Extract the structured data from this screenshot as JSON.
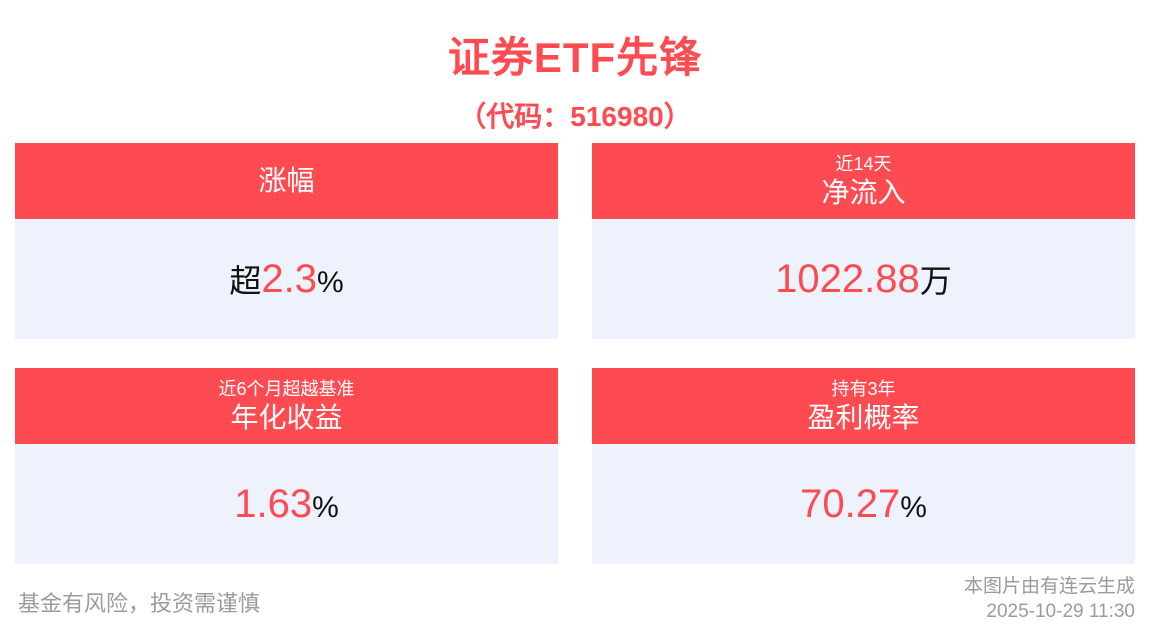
{
  "page": {
    "title": "证券ETF先锋",
    "subtitle": "（代码：516980）"
  },
  "cards": [
    {
      "name": "change-percent",
      "header_large": "涨幅",
      "value_prefix": "超",
      "value": "2.3",
      "value_suffix": "%"
    },
    {
      "name": "net-inflow",
      "header_small": "近14天",
      "header_large": "净流入",
      "value": "1022.88",
      "value_suffix": "万"
    },
    {
      "name": "annualized-return",
      "header_small": "近6个月超越基准",
      "header_large": "年化收益",
      "value": "1.63",
      "value_suffix": "%"
    },
    {
      "name": "profit-probability",
      "header_small": "持有3年",
      "header_large": "盈利概率",
      "value": "70.27",
      "value_suffix": "%"
    }
  ],
  "footer": {
    "disclaimer": "基金有风险，投资需谨慎",
    "credit": "本图片由有连云生成",
    "timestamp": "2025-10-29 11:30"
  },
  "colors": {
    "accent_red": "#FD4B51",
    "card_body_bg": "#EDF2FC",
    "value_black": "#111111",
    "footer_gray": "#9B9B9B"
  }
}
